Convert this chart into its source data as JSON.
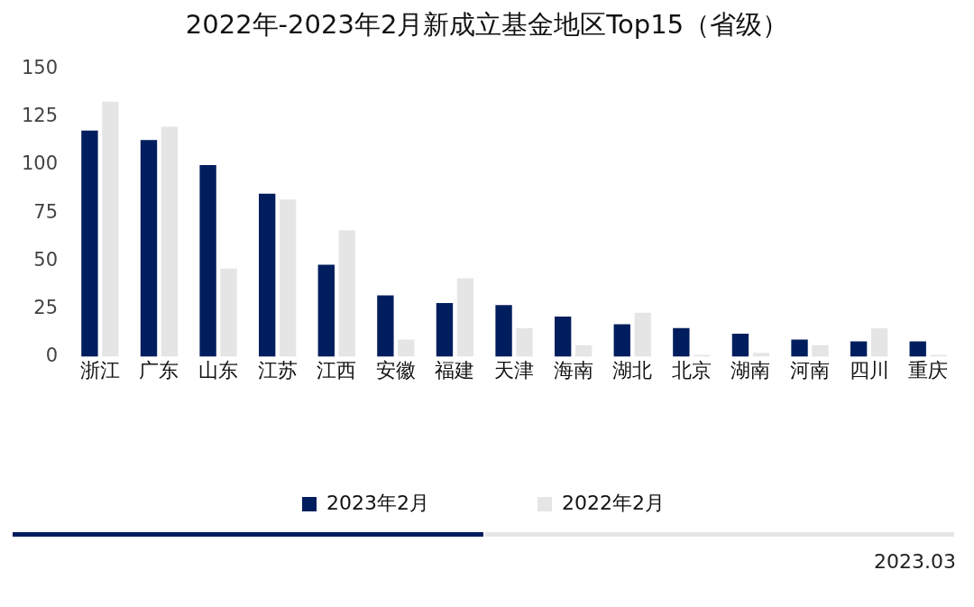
{
  "chart_data": {
    "type": "bar",
    "title": "2022年-2023年2月新成立基金地区Top15（省级）",
    "categories": [
      "浙江",
      "广东",
      "山东",
      "江苏",
      "江西",
      "安徽",
      "福建",
      "天津",
      "海南",
      "湖北",
      "北京",
      "湖南",
      "河南",
      "四川",
      "重庆"
    ],
    "series": [
      {
        "name": "2023年2月",
        "color": "#001e5e",
        "values": [
          118,
          113,
          100,
          85,
          48,
          32,
          28,
          27,
          21,
          17,
          15,
          12,
          9,
          8,
          8
        ]
      },
      {
        "name": "2022年2月",
        "color": "#e5e5e5",
        "values": [
          133,
          120,
          46,
          82,
          66,
          9,
          41,
          15,
          6,
          23,
          1,
          2,
          6,
          15,
          1
        ]
      }
    ],
    "ylim": [
      0,
      150
    ],
    "yticks": [
      0,
      25,
      50,
      75,
      100,
      125,
      150
    ],
    "grid": false,
    "legend": "bottom",
    "annotations": [
      "2023.03"
    ]
  }
}
